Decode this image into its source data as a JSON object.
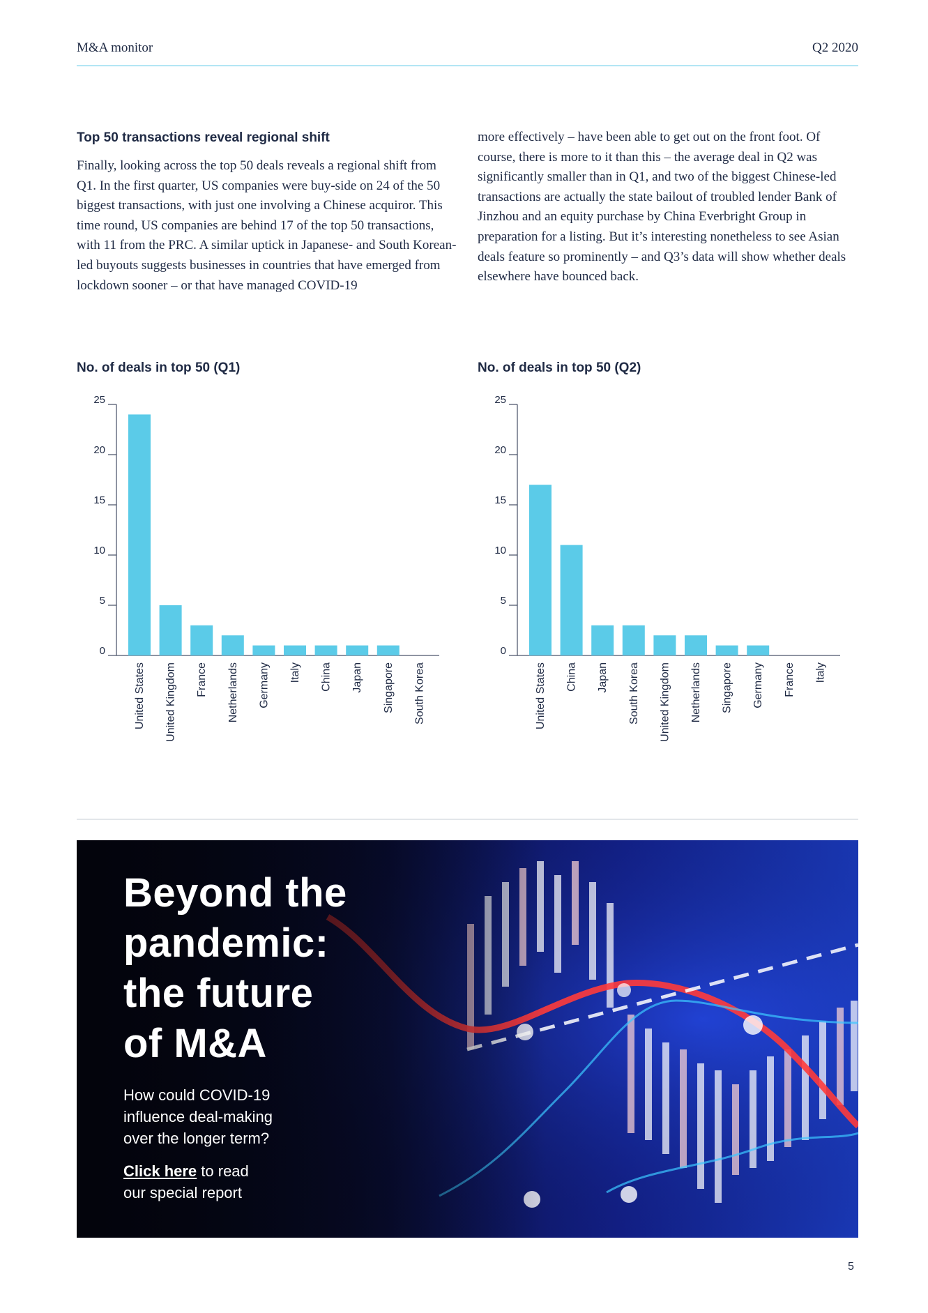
{
  "header": {
    "left": "M&A monitor",
    "right": "Q2 2020"
  },
  "article": {
    "title": "Top 50 transactions reveal regional shift",
    "paragraph_left": "Finally, looking across the top 50 deals reveals a regional shift from Q1. In the first quarter, US companies were buy-side on 24 of the 50 biggest transactions, with just one involving a Chinese acquiror. This time round, US companies are behind 17 of the top 50 transactions, with 11 from the PRC. A similar uptick in Japanese- and South Korean-led buyouts suggests businesses in countries that have emerged from lockdown sooner – or that have managed COVID-19",
    "paragraph_right": "more effectively – have been able to get out on the front foot. Of course, there is more to it than this – the average deal in Q2 was significantly smaller than in Q1, and two of the biggest Chinese-led transactions are actually the state bailout of troubled lender Bank of Jinzhou and an equity purchase by China Everbright Group in preparation for a listing. But it’s interesting nonetheless to see Asian deals feature so prominently – and Q3’s data will show whether deals elsewhere have bounced back."
  },
  "colors": {
    "accent": "#4ec3e6",
    "bar": "#5bcbe8",
    "text": "#1f2a44"
  },
  "chart_data": [
    {
      "type": "bar",
      "title": "No. of deals in top 50 (Q1)",
      "categories": [
        "United States",
        "United Kingdom",
        "France",
        "Netherlands",
        "Germany",
        "Italy",
        "China",
        "Japan",
        "Singapore",
        "South Korea"
      ],
      "values": [
        24,
        5,
        3,
        2,
        1,
        1,
        1,
        1,
        1,
        0
      ],
      "yticks": [
        0,
        5,
        10,
        15,
        20,
        25
      ],
      "ylim": [
        0,
        25
      ],
      "xlabel": "",
      "ylabel": ""
    },
    {
      "type": "bar",
      "title": "No. of deals in top 50 (Q2)",
      "categories": [
        "United States",
        "China",
        "Japan",
        "South Korea",
        "United Kingdom",
        "Netherlands",
        "Singapore",
        "Germany",
        "France",
        "Italy"
      ],
      "values": [
        17,
        11,
        3,
        3,
        2,
        2,
        1,
        1,
        0,
        0
      ],
      "yticks": [
        0,
        5,
        10,
        15,
        20,
        25
      ],
      "ylim": [
        0,
        25
      ],
      "xlabel": "",
      "ylabel": ""
    }
  ],
  "banner": {
    "title_lines": [
      "Beyond the",
      "pandemic:",
      "the future",
      "of M&A"
    ],
    "subtitle_lines": [
      "How could COVID-19",
      "influence deal-making",
      "over the longer term?"
    ],
    "cta_link": "Click here",
    "cta_rest_line1": " to read",
    "cta_line2": "our special report"
  },
  "page_number": "5"
}
